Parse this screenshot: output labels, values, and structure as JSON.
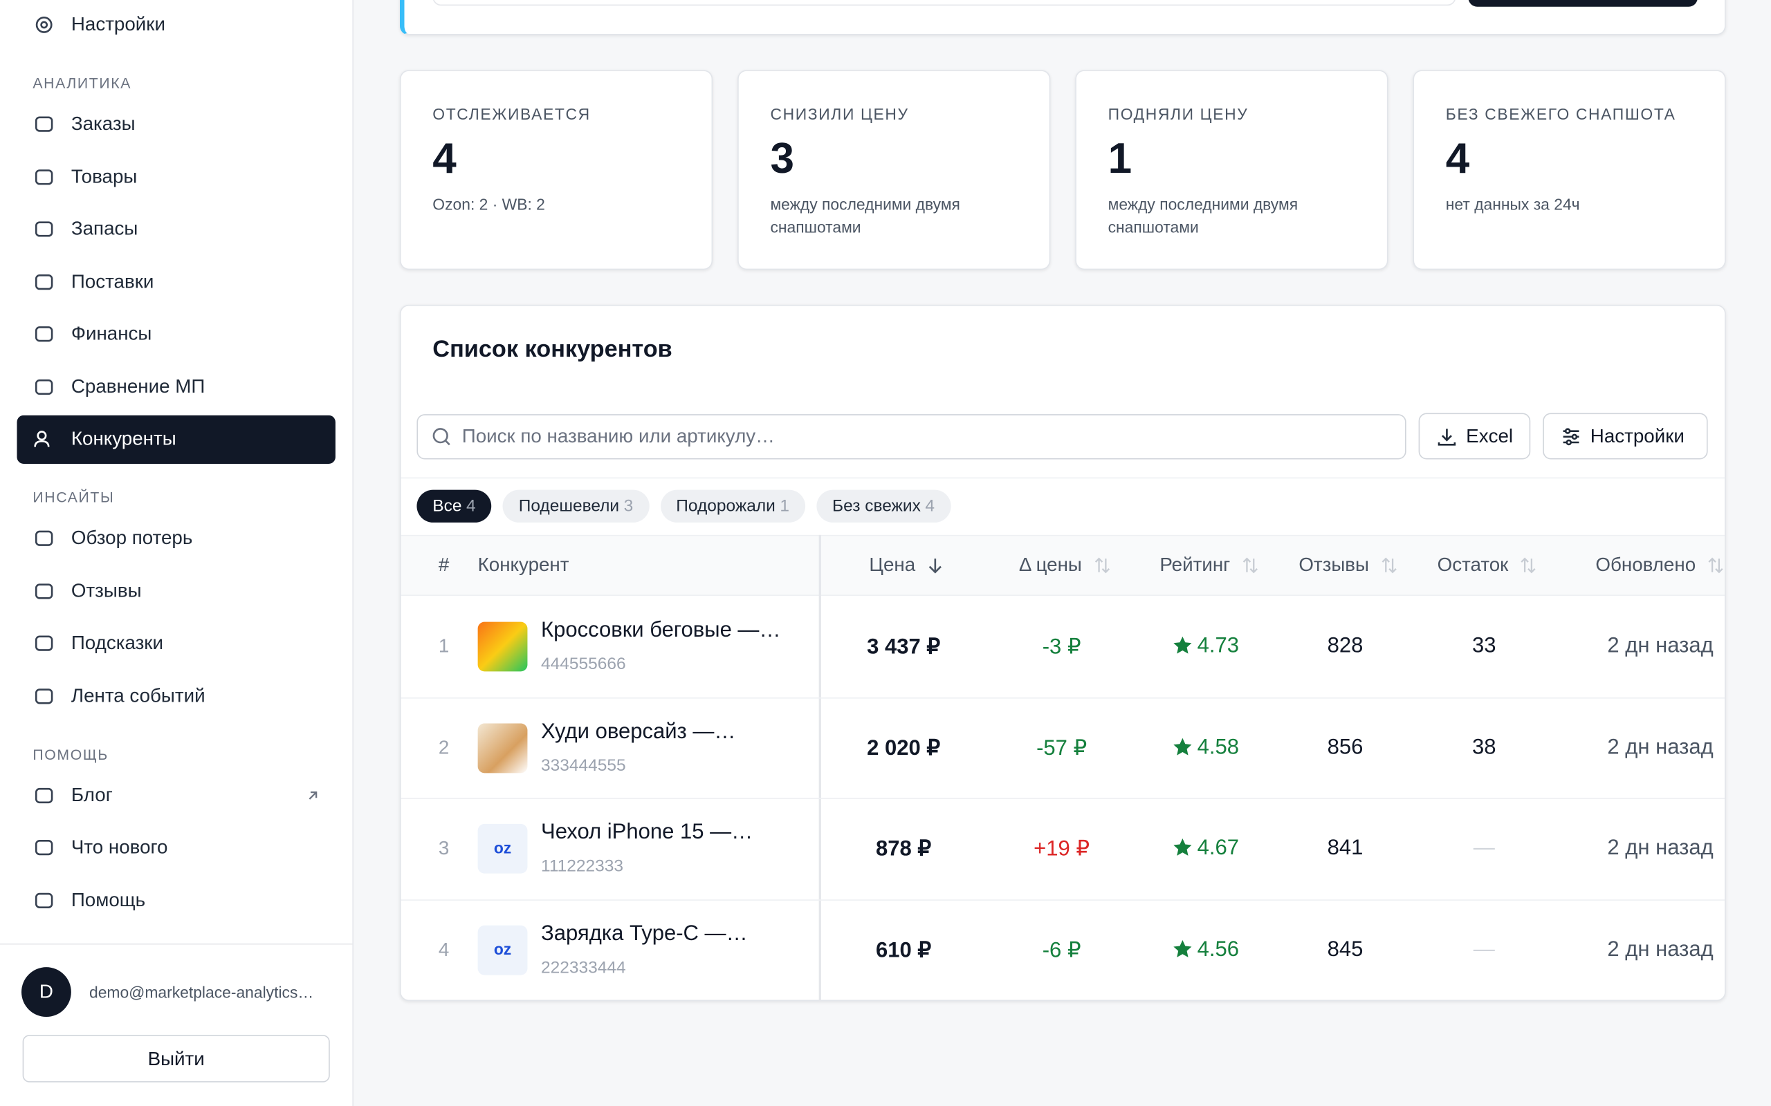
{
  "sidebar": {
    "top_item": "Настройки",
    "sections": [
      {
        "title": "АНАЛИТИКА",
        "items": [
          {
            "label": "Заказы"
          },
          {
            "label": "Товары"
          },
          {
            "label": "Запасы"
          },
          {
            "label": "Поставки"
          },
          {
            "label": "Финансы"
          },
          {
            "label": "Сравнение МП"
          },
          {
            "label": "Конкуренты",
            "active": true
          }
        ]
      },
      {
        "title": "ИНСАЙТЫ",
        "items": [
          {
            "label": "Обзор потерь"
          },
          {
            "label": "Отзывы"
          },
          {
            "label": "Подсказки"
          },
          {
            "label": "Лента событий"
          }
        ]
      },
      {
        "title": "ПОМОЩЬ",
        "items": [
          {
            "label": "Блог",
            "external": true
          },
          {
            "label": "Что нового"
          },
          {
            "label": "Помощь"
          }
        ]
      }
    ],
    "user": {
      "avatar": "D",
      "email": "demo@marketplace-analytics…"
    },
    "logout": "Выйти"
  },
  "stats": [
    {
      "label": "ОТСЛЕЖИВАЕТСЯ",
      "value": "4",
      "sub": "Ozon: 2 · WB: 2"
    },
    {
      "label": "СНИЗИЛИ ЦЕНУ",
      "value": "3",
      "sub": "между последними двумя снапшотами"
    },
    {
      "label": "ПОДНЯЛИ ЦЕНУ",
      "value": "1",
      "sub": "между последними двумя снапшотами"
    },
    {
      "label": "БЕЗ СВЕЖЕГО СНАПШОТА",
      "value": "4",
      "sub": "нет данных за 24ч"
    }
  ],
  "table": {
    "title": "Список конкурентов",
    "search_placeholder": "Поиск по названию или артикулу…",
    "buttons": [
      "Excel",
      "Настройки"
    ],
    "filters": [
      {
        "label": "Все",
        "count": "4",
        "active": true
      },
      {
        "label": "Подешевели",
        "count": "3"
      },
      {
        "label": "Подорожали",
        "count": "1"
      },
      {
        "label": "Без свежих",
        "count": "4"
      }
    ],
    "headers": [
      "#",
      "Конкурент",
      "Цена",
      "Δ цены",
      "Рейтинг",
      "Отзывы",
      "Остаток",
      "Обновлено"
    ],
    "rows": [
      {
        "n": "1",
        "name": "Кроссовки беговые —…",
        "sku": "444555666",
        "price": "3 437 ₽",
        "delta": "-3 ₽",
        "trend": "down",
        "rating": "4.73",
        "reviews": "828",
        "stock": "33",
        "updated": "2 дн назад"
      },
      {
        "n": "2",
        "name": "Худи оверсайз —…",
        "sku": "333444555",
        "price": "2 020 ₽",
        "delta": "-57 ₽",
        "trend": "down",
        "rating": "4.58",
        "reviews": "856",
        "stock": "38",
        "updated": "2 дн назад"
      },
      {
        "n": "3",
        "thumb": "oz",
        "name": "Чехол iPhone 15 —…",
        "sku": "111222333",
        "price": "878 ₽",
        "delta": "+19 ₽",
        "trend": "up",
        "rating": "4.67",
        "reviews": "841",
        "stock": "—",
        "updated": "2 дн назад"
      },
      {
        "n": "4",
        "thumb": "oz",
        "name": "Зарядка Type-C —…",
        "sku": "222333444",
        "price": "610 ₽",
        "delta": "-6 ₽",
        "trend": "down",
        "rating": "4.56",
        "reviews": "845",
        "stock": "—",
        "updated": "2 дн назад"
      }
    ]
  }
}
